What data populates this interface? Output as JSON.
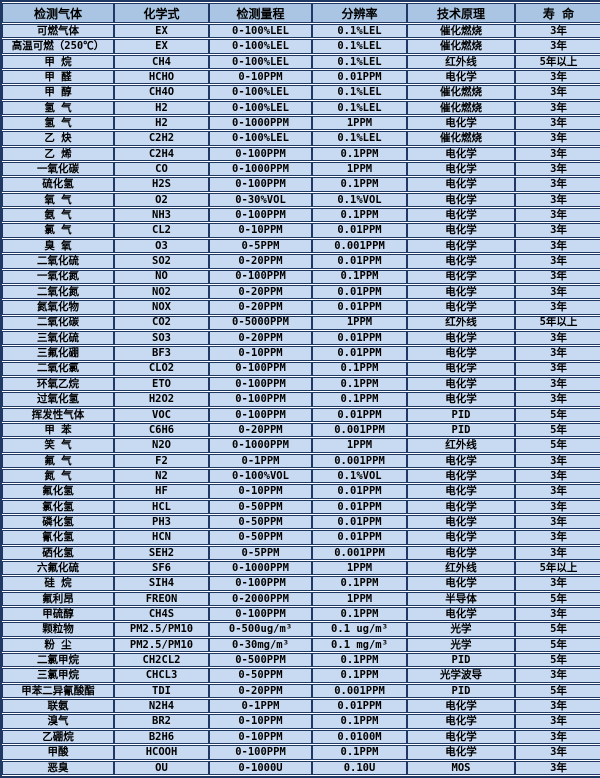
{
  "colors": {
    "header_bg": "#a9c5e3",
    "row_bg": "#c8daf1",
    "border": "#203864",
    "row_gap": "#ffffff",
    "text": "#000000"
  },
  "chart_data": {
    "type": "table",
    "title": "",
    "columns": [
      "检测气体",
      "化学式",
      "检测量程",
      "分辨率",
      "技术原理",
      "寿 命"
    ],
    "rows": [
      [
        "可燃气体",
        "EX",
        "0-100%LEL",
        "0.1%LEL",
        "催化燃烧",
        "3年"
      ],
      [
        "高温可燃（250℃）",
        "EX",
        "0-100%LEL",
        "0.1%LEL",
        "催化燃烧",
        "3年"
      ],
      [
        "甲 烷",
        "CH4",
        "0-100%LEL",
        "0.1%LEL",
        "红外线",
        "5年以上"
      ],
      [
        "甲 醛",
        "HCHO",
        "0-10PPM",
        "0.01PPM",
        "电化学",
        "3年"
      ],
      [
        "甲 醇",
        "CH4O",
        "0-100%LEL",
        "0.1%LEL",
        "催化燃烧",
        "3年"
      ],
      [
        "氢 气",
        "H2",
        "0-100%LEL",
        "0.1%LEL",
        "催化燃烧",
        "3年"
      ],
      [
        "氢 气",
        "H2",
        "0-1000PPM",
        "1PPM",
        "电化学",
        "3年"
      ],
      [
        "乙 炔",
        "C2H2",
        "0-100%LEL",
        "0.1%LEL",
        "催化燃烧",
        "3年"
      ],
      [
        "乙 烯",
        "C2H4",
        "0-100PPM",
        "0.1PPM",
        "电化学",
        "3年"
      ],
      [
        "一氧化碳",
        "CO",
        "0-1000PPM",
        "1PPM",
        "电化学",
        "3年"
      ],
      [
        "硫化氢",
        "H2S",
        "0-100PPM",
        "0.1PPM",
        "电化学",
        "3年"
      ],
      [
        "氧 气",
        "O2",
        "0-30%VOL",
        "0.1%VOL",
        "电化学",
        "3年"
      ],
      [
        "氨 气",
        "NH3",
        "0-100PPM",
        "0.1PPM",
        "电化学",
        "3年"
      ],
      [
        "氯 气",
        "CL2",
        "0-10PPM",
        "0.01PPM",
        "电化学",
        "3年"
      ],
      [
        "臭 氧",
        "O3",
        "0-5PPM",
        "0.001PPM",
        "电化学",
        "3年"
      ],
      [
        "二氧化硫",
        "SO2",
        "0-20PPM",
        "0.01PPM",
        "电化学",
        "3年"
      ],
      [
        "一氧化氮",
        "NO",
        "0-100PPM",
        "0.1PPM",
        "电化学",
        "3年"
      ],
      [
        "二氧化氮",
        "NO2",
        "0-20PPM",
        "0.01PPM",
        "电化学",
        "3年"
      ],
      [
        "氮氧化物",
        "NOX",
        "0-20PPM",
        "0.01PPM",
        "电化学",
        "3年"
      ],
      [
        "二氧化碳",
        "CO2",
        "0-5000PPM",
        "1PPM",
        "红外线",
        "5年以上"
      ],
      [
        "三氧化硫",
        "SO3",
        "0-20PPM",
        "0.01PPM",
        "电化学",
        "3年"
      ],
      [
        "三氟化硼",
        "BF3",
        "0-10PPM",
        "0.01PPM",
        "电化学",
        "3年"
      ],
      [
        "二氧化氯",
        "CLO2",
        "0-100PPM",
        "0.1PPM",
        "电化学",
        "3年"
      ],
      [
        "环氧乙烷",
        "ETO",
        "0-100PPM",
        "0.1PPM",
        "电化学",
        "3年"
      ],
      [
        "过氧化氢",
        "H2O2",
        "0-100PPM",
        "0.1PPM",
        "电化学",
        "3年"
      ],
      [
        "挥发性气体",
        "VOC",
        "0-100PPM",
        "0.01PPM",
        "PID",
        "5年"
      ],
      [
        "甲 苯",
        "C6H6",
        "0-20PPM",
        "0.001PPM",
        "PID",
        "5年"
      ],
      [
        "笑 气",
        "N2O",
        "0-1000PPM",
        "1PPM",
        "红外线",
        "5年"
      ],
      [
        "氟 气",
        "F2",
        "0-1PPM",
        "0.001PPM",
        "电化学",
        "3年"
      ],
      [
        "氮 气",
        "N2",
        "0-100%VOL",
        "0.1%VOL",
        "电化学",
        "3年"
      ],
      [
        "氟化氢",
        "HF",
        "0-10PPM",
        "0.01PPM",
        "电化学",
        "3年"
      ],
      [
        "氯化氢",
        "HCL",
        "0-50PPM",
        "0.01PPM",
        "电化学",
        "3年"
      ],
      [
        "磷化氢",
        "PH3",
        "0-50PPM",
        "0.01PPM",
        "电化学",
        "3年"
      ],
      [
        "氰化氢",
        "HCN",
        "0-50PPM",
        "0.01PPM",
        "电化学",
        "3年"
      ],
      [
        "硒化氢",
        "SEH2",
        "0-5PPM",
        "0.001PPM",
        "电化学",
        "3年"
      ],
      [
        "六氟化硫",
        "SF6",
        "0-1000PPM",
        "1PPM",
        "红外线",
        "5年以上"
      ],
      [
        "硅 烷",
        "SIH4",
        "0-100PPM",
        "0.1PPM",
        "电化学",
        "3年"
      ],
      [
        "氟利昂",
        "FREON",
        "0-2000PPM",
        "1PPM",
        "半导体",
        "5年"
      ],
      [
        "甲硫醇",
        "CH4S",
        "0-100PPM",
        "0.1PPM",
        "电化学",
        "3年"
      ],
      [
        "颗粒物",
        "PM2.5/PM10",
        "0-500ug/m³",
        "0.1 ug/m³",
        "光学",
        "5年"
      ],
      [
        "粉 尘",
        "PM2.5/PM10",
        "0-30mg/m³",
        "0.1 mg/m³",
        "光学",
        "5年"
      ],
      [
        "二氯甲烷",
        "CH2CL2",
        "0-500PPM",
        "0.1PPM",
        "PID",
        "5年"
      ],
      [
        "三氯甲烷",
        "CHCL3",
        "0-50PPM",
        "0.1PPM",
        "光学波导",
        "3年"
      ],
      [
        "甲苯二异氰酸酯",
        "TDI",
        "0-20PPM",
        "0.001PPM",
        "PID",
        "5年"
      ],
      [
        "联氨",
        "N2H4",
        "0-1PPM",
        "0.01PPM",
        "电化学",
        "3年"
      ],
      [
        "溴气",
        "BR2",
        "0-10PPM",
        "0.1PPM",
        "电化学",
        "3年"
      ],
      [
        "乙硼烷",
        "B2H6",
        "0-10PPM",
        "0.0100M",
        "电化学",
        "3年"
      ],
      [
        "甲酸",
        "HCOOH",
        "0-100PPM",
        "0.1PPM",
        "电化学",
        "3年"
      ],
      [
        "恶臭",
        "OU",
        "0-1000U",
        "0.10U",
        "MOS",
        "3年"
      ]
    ]
  }
}
